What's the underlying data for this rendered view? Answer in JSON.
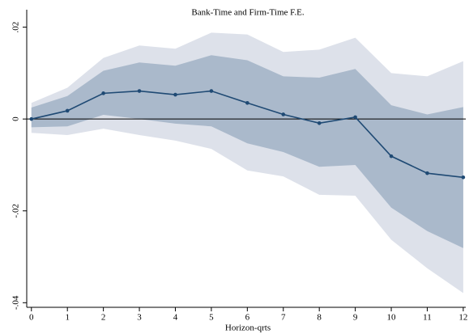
{
  "chart_data": {
    "type": "line",
    "title": "Bank-Time and Firm-Time F.E.",
    "x_label": "Horizon-qrts",
    "x": [
      0,
      1,
      2,
      3,
      4,
      5,
      6,
      7,
      8,
      9,
      10,
      11,
      12
    ],
    "xlim": [
      -0.13,
      12.07
    ],
    "xticks": [
      0,
      1,
      2,
      3,
      4,
      5,
      6,
      7,
      8,
      9,
      10,
      11,
      12
    ],
    "ylim": [
      -0.041,
      0.0238
    ],
    "yticks": [
      {
        "value": -0.04,
        "label": "-.04"
      },
      {
        "value": -0.02,
        "label": "-.02"
      },
      0,
      {
        "value": 0.02,
        "label": ".02"
      }
    ],
    "hline": 0,
    "bands": [
      {
        "color": "#dde1ea",
        "upper": [
          0.0035,
          0.0068,
          0.0133,
          0.016,
          0.0153,
          0.0188,
          0.0184,
          0.0146,
          0.0151,
          0.0177,
          0.01,
          0.0093,
          0.0126
        ],
        "lower": [
          -0.003,
          -0.0035,
          -0.0021,
          -0.0035,
          -0.0047,
          -0.0065,
          -0.0112,
          -0.0125,
          -0.0165,
          -0.0167,
          -0.0263,
          -0.0325,
          -0.0379
        ]
      },
      {
        "color": "#aab9cb",
        "upper": [
          0.0025,
          0.005,
          0.0105,
          0.0123,
          0.0116,
          0.0139,
          0.0128,
          0.0093,
          0.009,
          0.0109,
          0.003,
          0.001,
          0.0026
        ],
        "lower": [
          -0.0018,
          -0.0016,
          0.0009,
          0,
          -0.001,
          -0.0016,
          -0.0053,
          -0.0072,
          -0.0104,
          -0.01,
          -0.0193,
          -0.0244,
          -0.0281
        ]
      }
    ],
    "series": [
      {
        "color": "#1f4a74",
        "values": [
          0,
          0.0018,
          0.0056,
          0.0061,
          0.0053,
          0.0061,
          0.0035,
          0.001,
          -0.0009,
          0.0004,
          -0.0081,
          -0.0118,
          -0.0127
        ]
      }
    ]
  }
}
